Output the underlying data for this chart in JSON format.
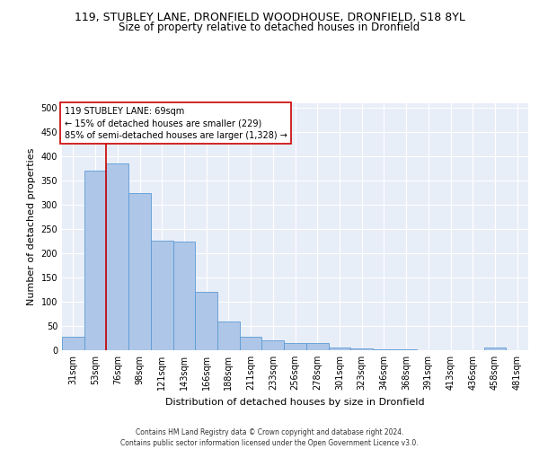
{
  "title_line1": "119, STUBLEY LANE, DRONFIELD WOODHOUSE, DRONFIELD, S18 8YL",
  "title_line2": "Size of property relative to detached houses in Dronfield",
  "xlabel": "Distribution of detached houses by size in Dronfield",
  "ylabel": "Number of detached properties",
  "categories": [
    "31sqm",
    "53sqm",
    "76sqm",
    "98sqm",
    "121sqm",
    "143sqm",
    "166sqm",
    "188sqm",
    "211sqm",
    "233sqm",
    "256sqm",
    "278sqm",
    "301sqm",
    "323sqm",
    "346sqm",
    "368sqm",
    "391sqm",
    "413sqm",
    "436sqm",
    "458sqm",
    "481sqm"
  ],
  "values": [
    27,
    370,
    385,
    325,
    226,
    224,
    120,
    60,
    27,
    20,
    15,
    15,
    5,
    3,
    1,
    1,
    0,
    0,
    0,
    5,
    0
  ],
  "bar_color": "#aec6e8",
  "bar_edge_color": "#5b9bd5",
  "vline_x": 1.5,
  "vline_color": "#cc0000",
  "annotation_text": "119 STUBLEY LANE: 69sqm\n← 15% of detached houses are smaller (229)\n85% of semi-detached houses are larger (1,328) →",
  "annotation_box_color": "#ffffff",
  "annotation_box_edge": "#cc0000",
  "ylim": [
    0,
    510
  ],
  "yticks": [
    0,
    50,
    100,
    150,
    200,
    250,
    300,
    350,
    400,
    450,
    500
  ],
  "footer": "Contains HM Land Registry data © Crown copyright and database right 2024.\nContains public sector information licensed under the Open Government Licence v3.0.",
  "bg_color": "#e8eef8",
  "grid_color": "#ffffff",
  "title_fontsize": 9,
  "subtitle_fontsize": 8.5,
  "xlabel_fontsize": 8,
  "ylabel_fontsize": 8,
  "tick_fontsize": 7,
  "annotation_fontsize": 7,
  "footer_fontsize": 5.5
}
